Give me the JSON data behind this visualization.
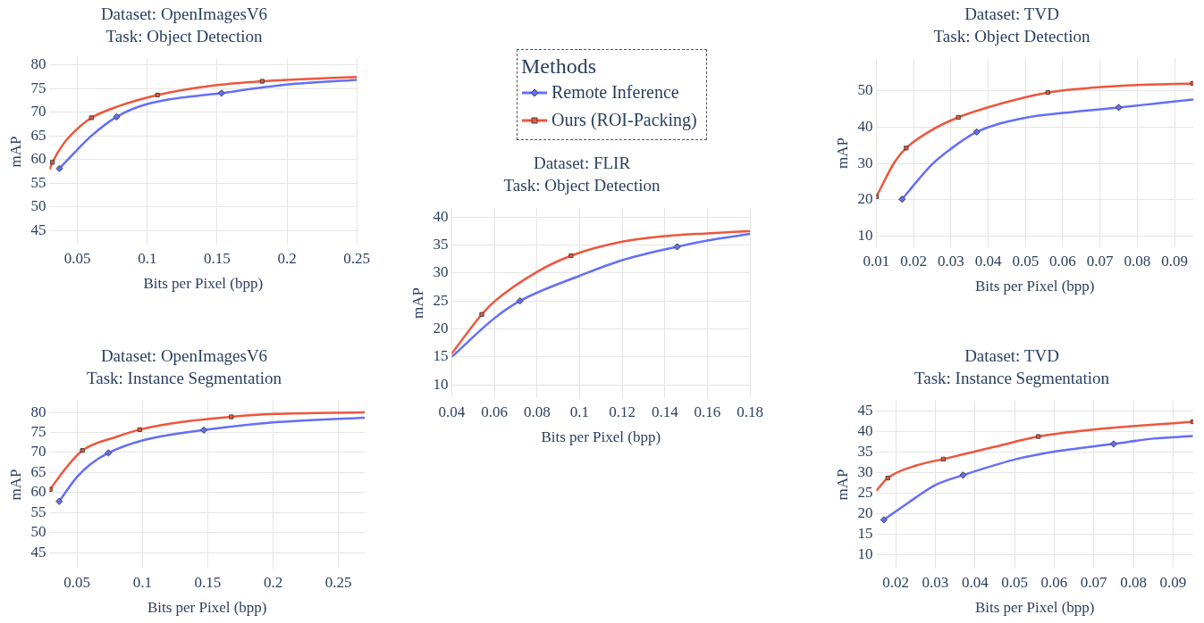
{
  "chart_data": [
    {
      "type": "line",
      "title": "Dataset: OpenImagesV6",
      "subtitle": "Task: Object Detection",
      "xlabel": "Bits per Pixel (bpp)",
      "ylabel": "mAP",
      "xlim": [
        0.03,
        0.25
      ],
      "ylim": [
        42,
        81.3
      ],
      "xticks": [
        0.05,
        0.1,
        0.15,
        0.2,
        0.25
      ],
      "yticks": [
        45,
        50,
        55,
        60,
        65,
        70,
        75,
        80
      ],
      "grid": true,
      "legend": false,
      "series": [
        {
          "type": "line",
          "color": "#636efa",
          "x": [
            0.0371,
            0.05,
            0.06,
            0.0781,
            0.1,
            0.1531,
            0.2,
            0.25
          ],
          "values": [
            58.1,
            62.1,
            65.0,
            69.0,
            71.7,
            74.0,
            75.8,
            76.8
          ]
        },
        {
          "type": "line",
          "color": "#ef553b",
          "x": [
            0.03,
            0.0321,
            0.04,
            0.05,
            0.06,
            0.08,
            0.1073,
            0.15,
            0.1823,
            0.2,
            0.25
          ],
          "values": [
            57.9,
            59.4,
            63.3,
            66.5,
            68.8,
            71.3,
            73.6,
            75.7,
            76.5,
            76.8,
            77.4
          ]
        },
        {
          "type": "scatter",
          "marker": "diamond",
          "color": "#636efa",
          "x": [
            0.0371,
            0.0781,
            0.1531
          ],
          "values": [
            58.1,
            69.0,
            74.0
          ]
        },
        {
          "type": "scatter",
          "marker": "square",
          "color": "#ef553b",
          "x": [
            0.0321,
            0.06,
            0.1073,
            0.1823
          ],
          "values": [
            59.4,
            68.8,
            73.6,
            76.5
          ]
        }
      ]
    },
    {
      "type": "line",
      "title": "Dataset: FLIR",
      "subtitle": "Task: Object Detection",
      "xlabel": "Bits per Pixel (bpp)",
      "ylabel": "mAP",
      "legend_title": "Methods",
      "xlim": [
        0.04,
        0.18
      ],
      "ylim": [
        7.6,
        41.7
      ],
      "xticks": [
        0.04,
        0.06,
        0.08,
        0.1,
        0.12,
        0.14,
        0.16,
        0.18
      ],
      "yticks": [
        10,
        15,
        20,
        25,
        30,
        35,
        40
      ],
      "grid": true,
      "legend": "top",
      "series": [
        {
          "name": "Remote Inference",
          "type": "line",
          "color": "#636efa",
          "x": [
            0.04,
            0.06,
            0.072,
            0.1,
            0.12,
            0.1458,
            0.16,
            0.18
          ],
          "values": [
            15.0,
            21.9,
            25.0,
            29.5,
            32.3,
            34.7,
            35.8,
            37.0
          ]
        },
        {
          "name": "Ours (ROI-Packing)",
          "type": "line",
          "color": "#ef553b",
          "x": [
            0.04,
            0.0541,
            0.06,
            0.08,
            0.096,
            0.12,
            0.14,
            0.16,
            0.18
          ],
          "values": [
            15.6,
            22.6,
            24.9,
            30.2,
            33.1,
            35.6,
            36.6,
            37.1,
            37.5
          ]
        },
        {
          "type": "scatter",
          "marker": "diamond",
          "color": "#636efa",
          "x": [
            0.072,
            0.1458
          ],
          "values": [
            25.0,
            34.7
          ]
        },
        {
          "type": "scatter",
          "marker": "square",
          "color": "#ef553b",
          "x": [
            0.0541,
            0.096
          ],
          "values": [
            22.6,
            33.1
          ]
        }
      ]
    },
    {
      "type": "line",
      "title": "Dataset: TVD",
      "subtitle": "Task: Object Detection",
      "xlabel": "Bits per Pixel (bpp)",
      "ylabel": "mAP",
      "xlim": [
        0.01,
        0.095
      ],
      "ylim": [
        7,
        58.7
      ],
      "xticks": [
        0.01,
        0.02,
        0.03,
        0.04,
        0.05,
        0.06,
        0.07,
        0.08,
        0.09
      ],
      "yticks": [
        10,
        20,
        30,
        40,
        50
      ],
      "grid": true,
      "legend": false,
      "series": [
        {
          "type": "line",
          "color": "#636efa",
          "x": [
            0.0169,
            0.025,
            0.03,
            0.0369,
            0.05,
            0.06,
            0.075,
            0.085,
            0.095
          ],
          "values": [
            20.2,
            29.8,
            34.0,
            38.6,
            42.5,
            43.8,
            45.3,
            46.4,
            47.5
          ]
        },
        {
          "type": "line",
          "color": "#ef553b",
          "x": [
            0.01,
            0.015,
            0.018,
            0.025,
            0.032,
            0.045,
            0.056,
            0.075,
            0.0948
          ],
          "values": [
            20.9,
            30.5,
            34.2,
            39.2,
            42.6,
            46.8,
            49.4,
            51.2,
            51.9
          ]
        },
        {
          "type": "scatter",
          "marker": "diamond",
          "color": "#636efa",
          "x": [
            0.0169,
            0.0369,
            0.075
          ],
          "values": [
            20.2,
            38.6,
            45.3
          ]
        },
        {
          "type": "scatter",
          "marker": "square",
          "color": "#ef553b",
          "x": [
            0.01,
            0.018,
            0.032,
            0.056,
            0.0948
          ],
          "values": [
            20.9,
            34.2,
            42.6,
            49.4,
            51.9
          ]
        }
      ]
    },
    {
      "type": "line",
      "title": "Dataset: OpenImagesV6",
      "subtitle": "Task: Instance Segmentation",
      "xlabel": "Bits per Pixel (bpp)",
      "ylabel": "mAP",
      "xlim": [
        0.029,
        0.27
      ],
      "ylim": [
        41,
        83
      ],
      "xticks": [
        0.05,
        0.1,
        0.15,
        0.2,
        0.25
      ],
      "yticks": [
        45,
        50,
        55,
        60,
        65,
        70,
        75,
        80
      ],
      "grid": true,
      "legend": false,
      "series": [
        {
          "type": "line",
          "color": "#636efa",
          "x": [
            0.0364,
            0.05,
            0.06,
            0.0741,
            0.1,
            0.147,
            0.2,
            0.27
          ],
          "values": [
            57.8,
            63.9,
            67.0,
            69.9,
            73.0,
            75.6,
            77.5,
            78.7
          ]
        },
        {
          "type": "line",
          "color": "#ef553b",
          "x": [
            0.0295,
            0.04,
            0.0541,
            0.08,
            0.098,
            0.13,
            0.168,
            0.2,
            0.27
          ],
          "values": [
            60.8,
            65.5,
            70.5,
            73.9,
            75.7,
            77.6,
            78.9,
            79.6,
            80.0
          ]
        },
        {
          "type": "scatter",
          "marker": "diamond",
          "color": "#636efa",
          "x": [
            0.0364,
            0.0741,
            0.147
          ],
          "values": [
            57.8,
            69.9,
            75.6
          ]
        },
        {
          "type": "scatter",
          "marker": "square",
          "color": "#ef553b",
          "x": [
            0.0295,
            0.0541,
            0.098,
            0.168
          ],
          "values": [
            60.8,
            70.5,
            75.7,
            78.9
          ]
        }
      ]
    },
    {
      "type": "line",
      "title": "Dataset: TVD",
      "subtitle": "Task: Instance Segmentation",
      "xlabel": "Bits per Pixel (bpp)",
      "ylabel": "mAP",
      "xlim": [
        0.0151,
        0.0951
      ],
      "ylim": [
        6.5,
        47.5
      ],
      "xticks": [
        0.02,
        0.03,
        0.04,
        0.05,
        0.06,
        0.07,
        0.08,
        0.09
      ],
      "yticks": [
        10,
        15,
        20,
        25,
        30,
        35,
        40,
        45
      ],
      "grid": true,
      "legend": false,
      "series": [
        {
          "type": "line",
          "color": "#636efa",
          "x": [
            0.017,
            0.025,
            0.03,
            0.037,
            0.05,
            0.06,
            0.075,
            0.085,
            0.095
          ],
          "values": [
            18.4,
            23.8,
            26.9,
            29.3,
            33.1,
            35.0,
            36.9,
            38.2,
            38.8
          ]
        },
        {
          "type": "line",
          "color": "#ef553b",
          "x": [
            0.0151,
            0.018,
            0.025,
            0.032,
            0.045,
            0.056,
            0.07,
            0.095
          ],
          "values": [
            25.5,
            28.6,
            31.6,
            33.2,
            36.2,
            38.7,
            40.4,
            42.3
          ]
        },
        {
          "type": "scatter",
          "marker": "diamond",
          "color": "#636efa",
          "x": [
            0.017,
            0.037,
            0.075
          ],
          "values": [
            18.4,
            29.3,
            36.9
          ]
        },
        {
          "type": "scatter",
          "marker": "square",
          "color": "#ef553b",
          "x": [
            0.018,
            0.032,
            0.056,
            0.095
          ],
          "values": [
            28.6,
            33.2,
            38.7,
            42.3
          ]
        }
      ]
    }
  ]
}
